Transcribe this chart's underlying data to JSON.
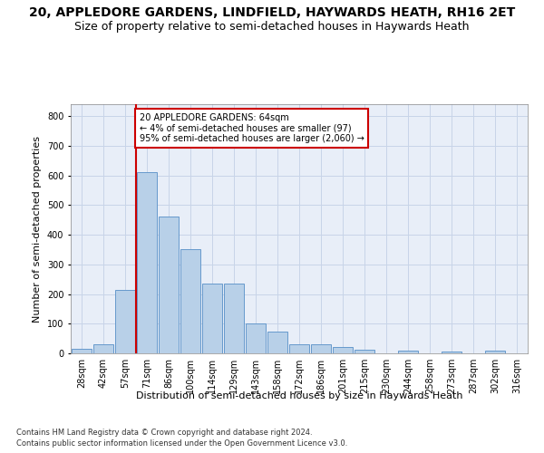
{
  "title1": "20, APPLEDORE GARDENS, LINDFIELD, HAYWARDS HEATH, RH16 2ET",
  "title2": "Size of property relative to semi-detached houses in Haywards Heath",
  "xlabel": "Distribution of semi-detached houses by size in Haywards Heath",
  "ylabel": "Number of semi-detached properties",
  "footnote1": "Contains HM Land Registry data © Crown copyright and database right 2024.",
  "footnote2": "Contains public sector information licensed under the Open Government Licence v3.0.",
  "categories": [
    "28sqm",
    "42sqm",
    "57sqm",
    "71sqm",
    "86sqm",
    "100sqm",
    "114sqm",
    "129sqm",
    "143sqm",
    "158sqm",
    "172sqm",
    "186sqm",
    "201sqm",
    "215sqm",
    "230sqm",
    "244sqm",
    "258sqm",
    "273sqm",
    "287sqm",
    "302sqm",
    "316sqm"
  ],
  "values": [
    15,
    32,
    215,
    610,
    460,
    350,
    235,
    235,
    100,
    72,
    32,
    32,
    20,
    12,
    0,
    10,
    0,
    5,
    0,
    8,
    0
  ],
  "bar_color": "#b8d0e8",
  "bar_edge_color": "#6699cc",
  "vline_pos": 2.5,
  "vline_color": "#cc0000",
  "box_color": "#cc0000",
  "marker_value": 64,
  "pct_smaller": 4,
  "pct_smaller_count": 97,
  "pct_larger": 95,
  "pct_larger_count": 2060,
  "ylim": [
    0,
    840
  ],
  "yticks": [
    0,
    100,
    200,
    300,
    400,
    500,
    600,
    700,
    800
  ],
  "grid_color": "#c8d4e8",
  "bg_color": "#e8eef8",
  "title_fontsize": 10,
  "subtitle_fontsize": 9,
  "axis_fontsize": 8,
  "tick_fontsize": 7,
  "footnote_fontsize": 6
}
